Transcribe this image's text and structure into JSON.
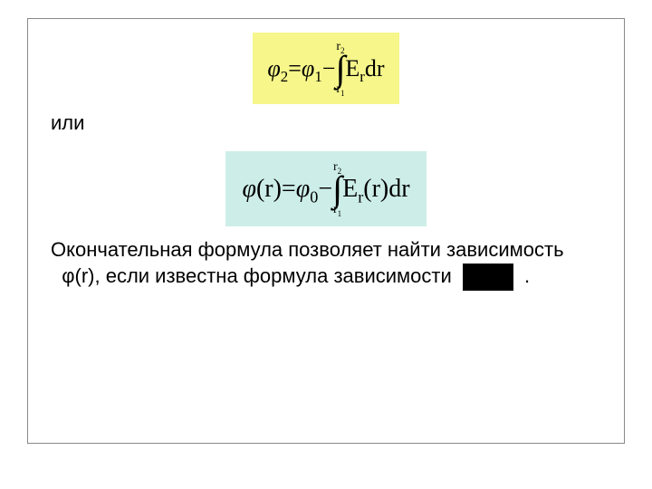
{
  "formula1": {
    "background": "#f6f68a",
    "phi2": "φ",
    "sub2": "2",
    "eq": " = ",
    "phi1": "φ",
    "sub1": "1",
    "minus": " − ",
    "upper": "r",
    "upper_sub": "2",
    "lower": "r",
    "lower_sub": "1",
    "integrand1": "E",
    "integrand1_sub": "r",
    "integrand2": "dr"
  },
  "text_or": "или",
  "formula2": {
    "background": "#cdeee8",
    "phi_l": "φ",
    "lparen": "(",
    "r_arg": "r",
    "rparen": ")",
    "eq": " = ",
    "phi0": "φ",
    "sub0": "0",
    "minus": " − ",
    "upper": "r",
    "upper_sub": "2",
    "lower": "r",
    "lower_sub": "1",
    "integrand1": "E",
    "integrand1_sub": "r",
    "lp2": "(",
    "r_arg2": "r",
    "rp2": ")",
    "integrand2": "dr"
  },
  "final_line1": "Окончательная формула позволяет найти зависимость",
  "final_phi": "φ(r), если известна формула зависимости",
  "period": ".",
  "blackbox": {
    "width": 56,
    "height": 30,
    "color": "#000000"
  },
  "colors": {
    "text": "#000000",
    "border": "#888888"
  }
}
